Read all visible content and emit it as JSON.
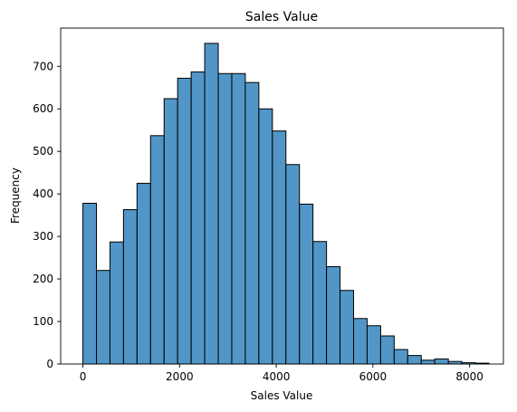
{
  "chart_data": {
    "type": "bar",
    "histogram": true,
    "title": "Sales Value",
    "xlabel": "Sales Value",
    "ylabel": "Frequency",
    "xlim": [
      -460,
      8700
    ],
    "ylim": [
      0,
      790
    ],
    "xticks": [
      0,
      2000,
      4000,
      6000,
      8000
    ],
    "yticks": [
      0,
      100,
      200,
      300,
      400,
      500,
      600,
      700
    ],
    "grid": false,
    "bar_color": "#5196c6",
    "edge_color": "#000000",
    "bin_edges": [
      0,
      280,
      560,
      840,
      1120,
      1400,
      1680,
      1960,
      2240,
      2520,
      2800,
      3080,
      3360,
      3640,
      3920,
      4200,
      4480,
      4760,
      5040,
      5320,
      5600,
      5880,
      6160,
      6440,
      6720,
      7000,
      7280,
      7560,
      7840,
      8120,
      8400
    ],
    "values": [
      378,
      220,
      287,
      363,
      425,
      537,
      624,
      672,
      687,
      754,
      683,
      683,
      662,
      600,
      548,
      469,
      376,
      288,
      229,
      173,
      107,
      90,
      66,
      34,
      20,
      9,
      12,
      6,
      3,
      2
    ]
  }
}
